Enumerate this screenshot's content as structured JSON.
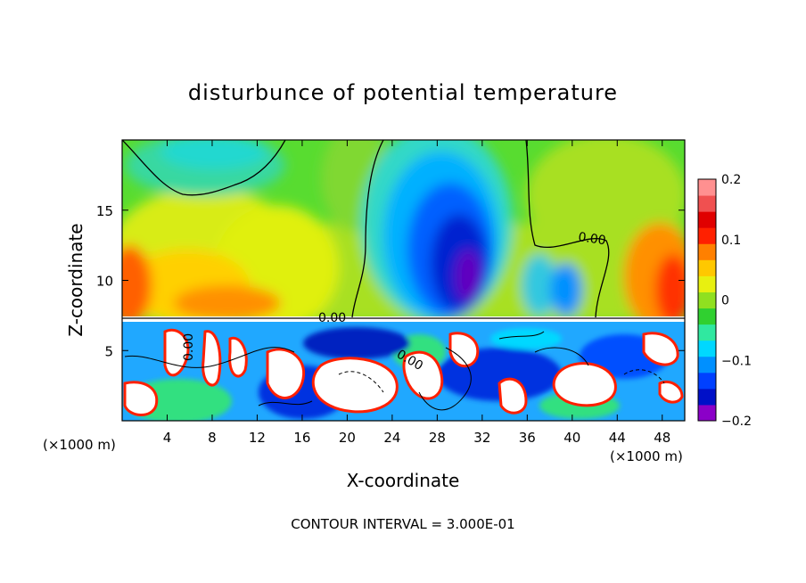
{
  "chart_data": {
    "type": "heatmap",
    "title": "disturbunce of potential temperature",
    "xlabel": "X-coordinate",
    "ylabel": "Z-coordinate",
    "x_unit_left": "(×1000 m)",
    "x_unit_right": "(×1000 m)",
    "xlim": [
      0,
      50
    ],
    "ylim": [
      0,
      20
    ],
    "x_ticks": [
      4,
      8,
      12,
      16,
      20,
      24,
      28,
      32,
      36,
      40,
      44,
      48
    ],
    "y_ticks": [
      5,
      10,
      15
    ],
    "x_tick_labels": [
      "4",
      "8",
      "12",
      "16",
      "20",
      "24",
      "28",
      "32",
      "36",
      "40",
      "44",
      "48"
    ],
    "y_tick_labels": [
      "5",
      "10",
      "15"
    ],
    "colorbar": {
      "range": [
        -0.2,
        0.2
      ],
      "tick_values": [
        0.2,
        0.1,
        0,
        -0.1,
        -0.2
      ],
      "tick_labels": [
        "0.2",
        "0.1",
        "0",
        "−0.1",
        "−0.2"
      ],
      "colors": [
        "#8b00c8",
        "#0010c8",
        "#0040ff",
        "#0090ff",
        "#00d8ff",
        "#30e8a0",
        "#30d030",
        "#90e020",
        "#e8f010",
        "#ffc800",
        "#ff8000",
        "#ff2000",
        "#e00000",
        "#f05050",
        "#ff9090"
      ]
    },
    "contour_labels": [
      "0.00",
      "0.00",
      "0.00",
      "0.00"
    ],
    "footer": "CONTOUR INTERVAL = 3.000E-01"
  }
}
